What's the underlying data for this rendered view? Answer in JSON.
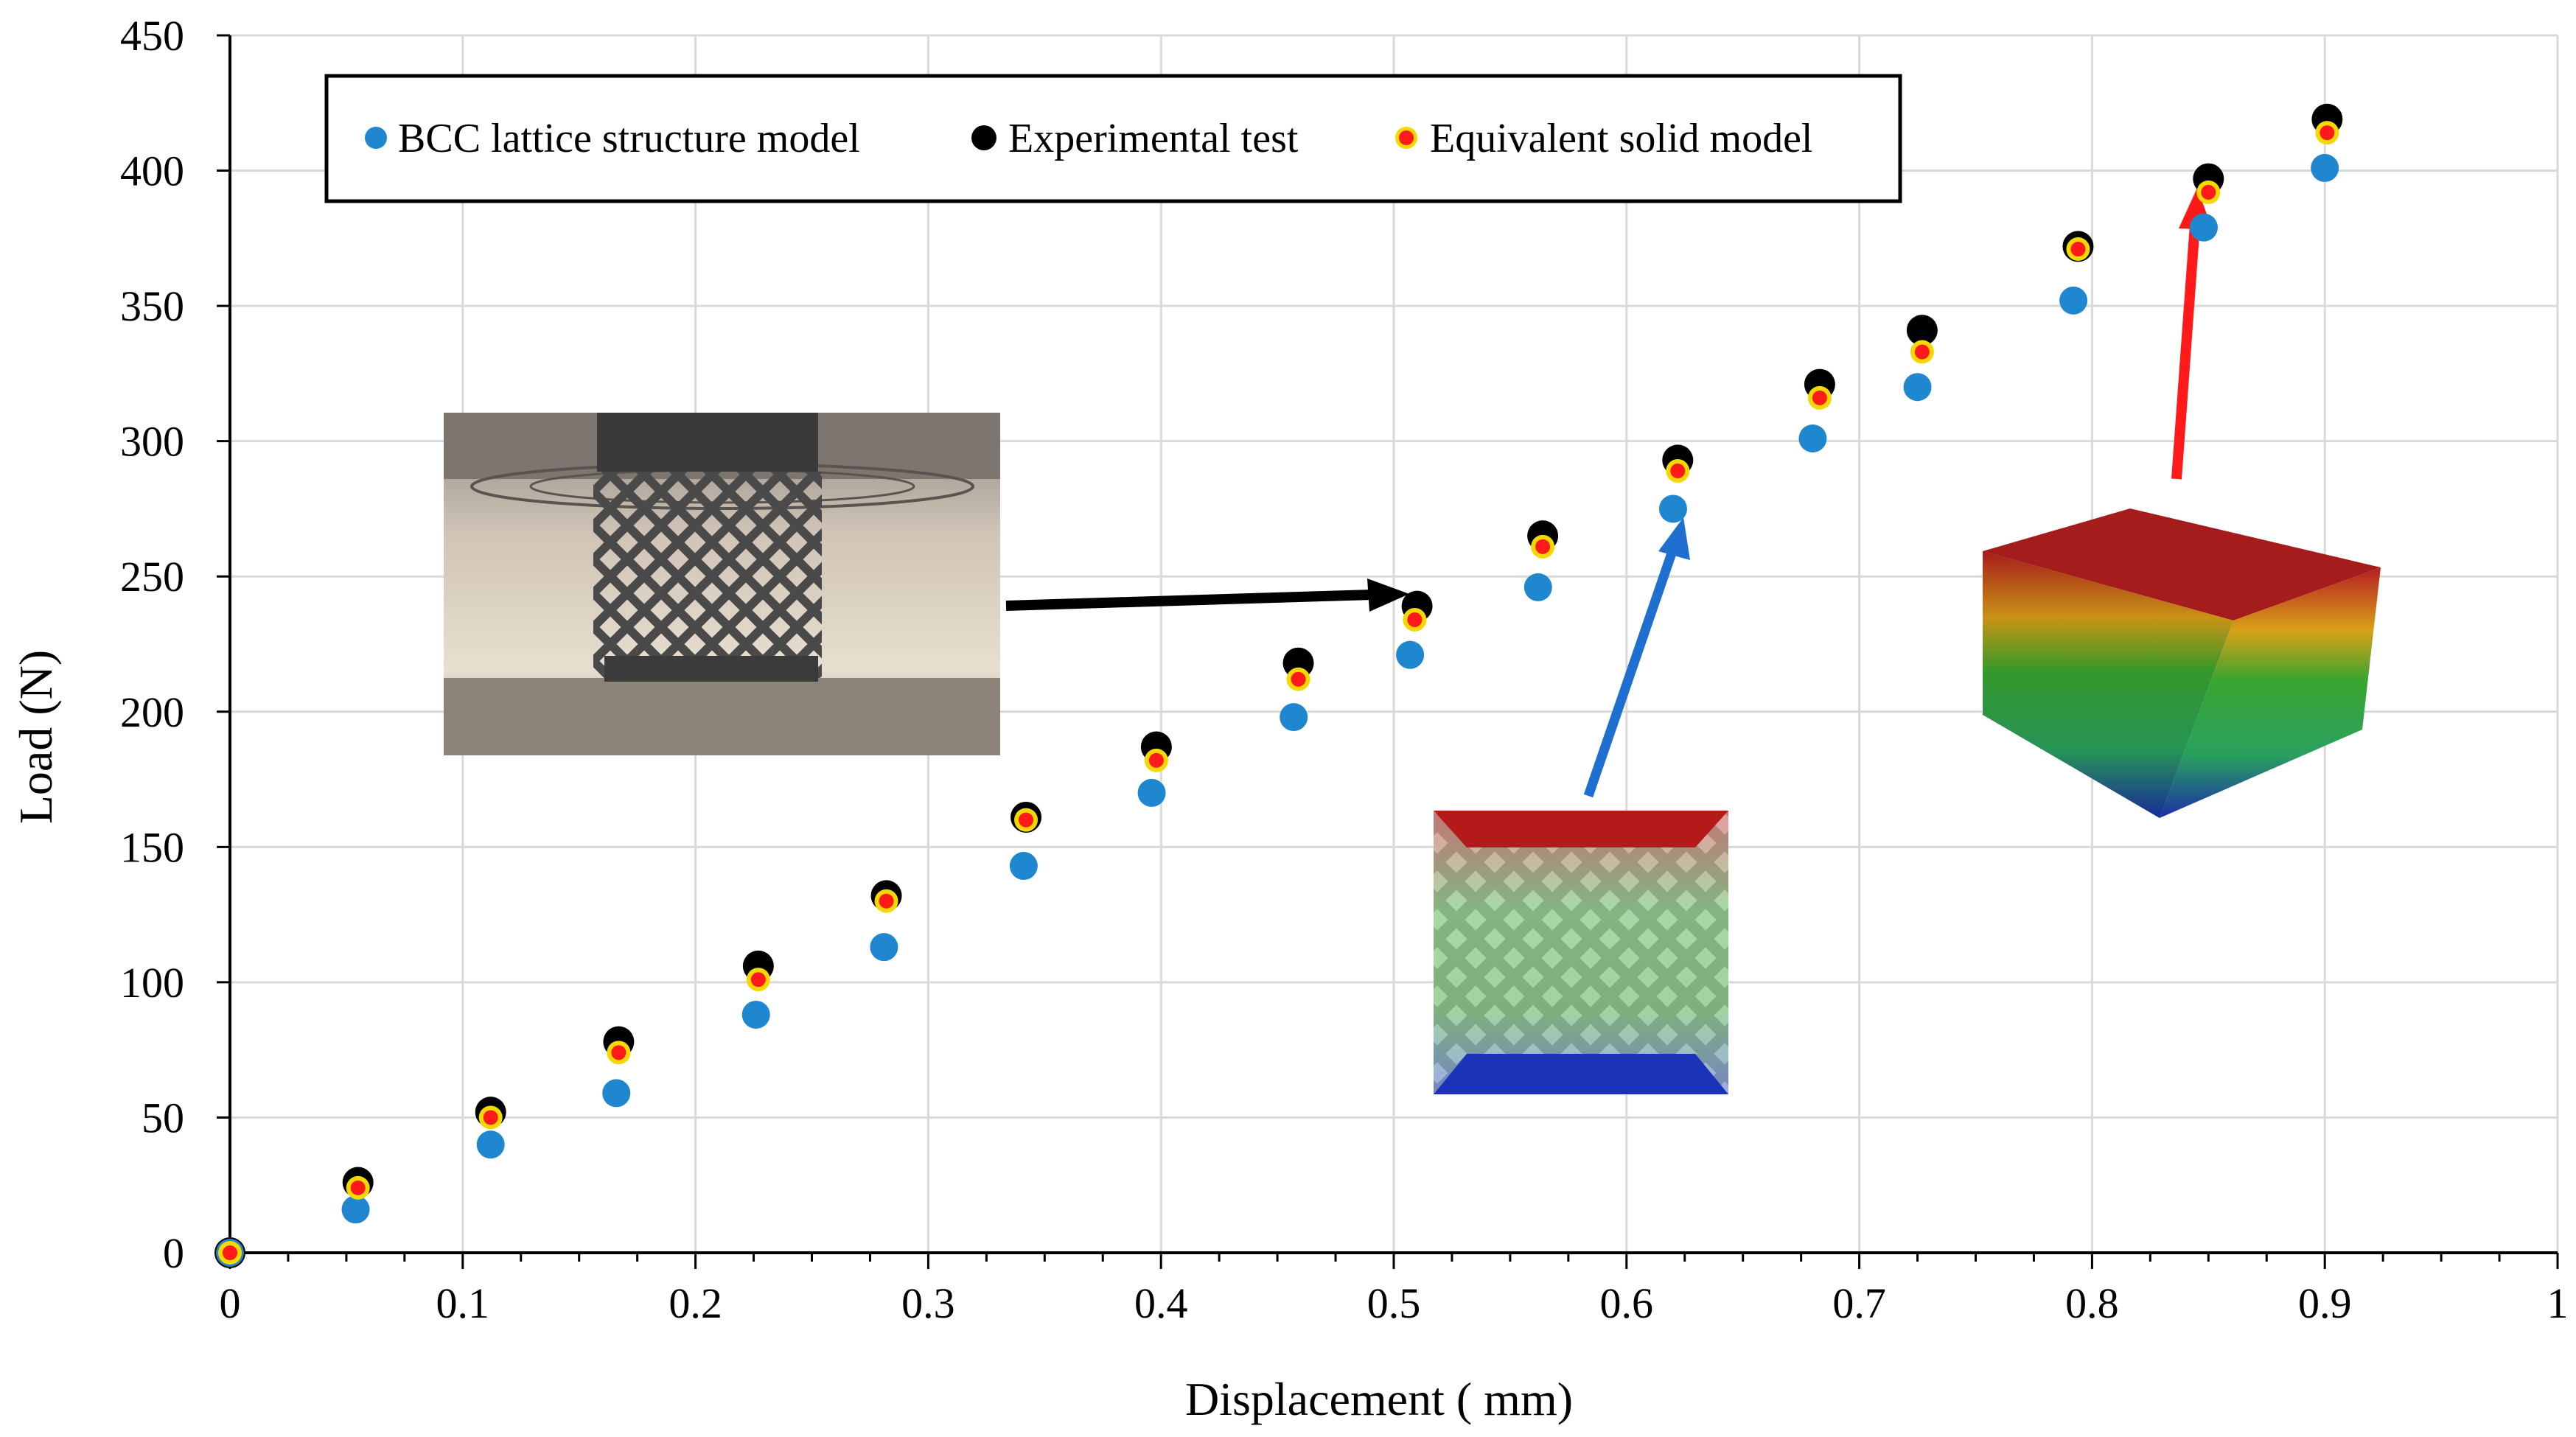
{
  "chart_data": {
    "type": "scatter",
    "title": "",
    "xlabel": "Displacement ( mm)",
    "ylabel": "Load (N)",
    "xlim": [
      0,
      1
    ],
    "ylim": [
      0,
      450
    ],
    "x_ticks": [
      0,
      0.1,
      0.2,
      0.3,
      0.4,
      0.5,
      0.6,
      0.7,
      0.8,
      0.9,
      1
    ],
    "x_tick_labels": [
      "0",
      "0.1",
      "0.2",
      "0.3",
      "0.4",
      "0.5",
      "0.6",
      "0.7",
      "0.8",
      "0.9",
      "1"
    ],
    "y_ticks": [
      0,
      50,
      100,
      150,
      200,
      250,
      300,
      350,
      400,
      450
    ],
    "y_tick_labels": [
      "0",
      "50",
      "100",
      "150",
      "200",
      "250",
      "300",
      "350",
      "400",
      "450"
    ],
    "grid": true,
    "legend": {
      "placement": "top-left",
      "entries": [
        "BCC lattice structure model",
        "Experimental test",
        "Equivalent solid model"
      ]
    },
    "series": [
      {
        "name": "BCC lattice structure model",
        "color": "#1f86d0",
        "x": [
          0,
          0.054,
          0.112,
          0.166,
          0.226,
          0.281,
          0.341,
          0.396,
          0.457,
          0.507,
          0.562,
          0.62,
          0.68,
          0.725,
          0.792,
          0.848,
          0.9
        ],
        "y": [
          0,
          16,
          40,
          59,
          88,
          113,
          143,
          170,
          198,
          221,
          246,
          275,
          301,
          320,
          352,
          379,
          401
        ]
      },
      {
        "name": "Experimental test",
        "color": "#000000",
        "x": [
          0,
          0.055,
          0.112,
          0.167,
          0.227,
          0.282,
          0.342,
          0.398,
          0.459,
          0.51,
          0.564,
          0.622,
          0.683,
          0.727,
          0.794,
          0.85,
          0.901
        ],
        "y": [
          0,
          26,
          52,
          78,
          106,
          132,
          161,
          187,
          218,
          239,
          265,
          293,
          321,
          341,
          372,
          397,
          419
        ]
      },
      {
        "name": "Equivalent solid model",
        "color": "#ff1a1a",
        "edge_color": "#f5d800",
        "x": [
          0,
          0.055,
          0.112,
          0.167,
          0.227,
          0.282,
          0.342,
          0.398,
          0.459,
          0.509,
          0.564,
          0.622,
          0.683,
          0.727,
          0.794,
          0.85,
          0.901
        ],
        "y": [
          0,
          24,
          50,
          74,
          101,
          130,
          160,
          182,
          212,
          234,
          261,
          289,
          316,
          333,
          371,
          392,
          414
        ]
      }
    ]
  },
  "insets": [
    {
      "name": "experimental-photo",
      "description_colors": [
        "#6b6b6b",
        "#d9c9b0",
        "#9a8f85"
      ]
    },
    {
      "name": "bcc-lattice-contour",
      "description_colors": [
        "#c81e1e",
        "#2f9e2f",
        "#1e3fc8"
      ]
    },
    {
      "name": "solid-block-contour",
      "description_colors": [
        "#b51f1f",
        "#39a52f",
        "#1c2fa6"
      ]
    }
  ],
  "arrows": [
    {
      "name": "black-arrow",
      "color": "#000000"
    },
    {
      "name": "blue-arrow",
      "color": "#1f6fd0"
    },
    {
      "name": "red-arrow",
      "color": "#ff1a1a"
    }
  ]
}
